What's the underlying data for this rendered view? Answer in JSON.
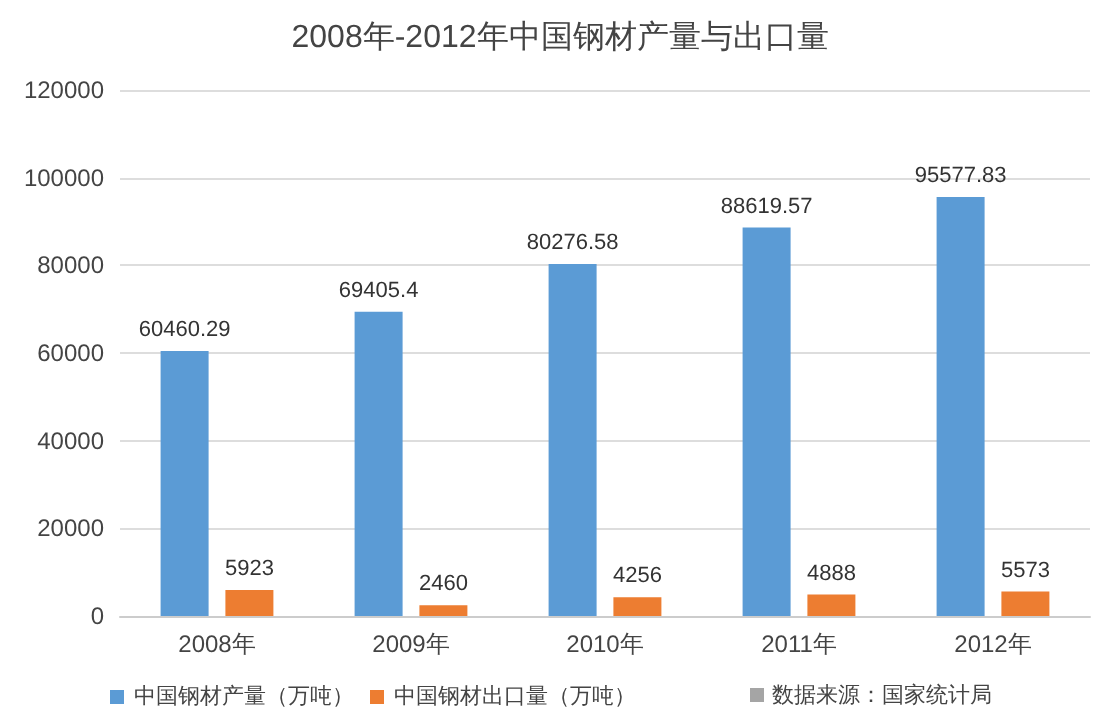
{
  "chart_data": {
    "type": "bar",
    "title": "2008年-2012年中国钢材产量与出口量",
    "categories": [
      "2008年",
      "2009年",
      "2010年",
      "2011年",
      "2012年"
    ],
    "series": [
      {
        "name": "中国钢材产量（万吨）",
        "color": "#5b9bd5",
        "values": [
          60460.29,
          69405.4,
          80276.58,
          88619.57,
          95577.83
        ]
      },
      {
        "name": "中国钢材出口量（万吨）",
        "color": "#ed7d31",
        "values": [
          5923,
          2460,
          4256,
          4888,
          5573
        ]
      }
    ],
    "ylim": [
      0,
      120000
    ],
    "yticks": [
      0,
      20000,
      40000,
      60000,
      80000,
      100000,
      120000
    ],
    "grid": "y",
    "legend": "bottom",
    "data_labels": true,
    "annotations": [
      "数据来源：国家统计局"
    ]
  }
}
